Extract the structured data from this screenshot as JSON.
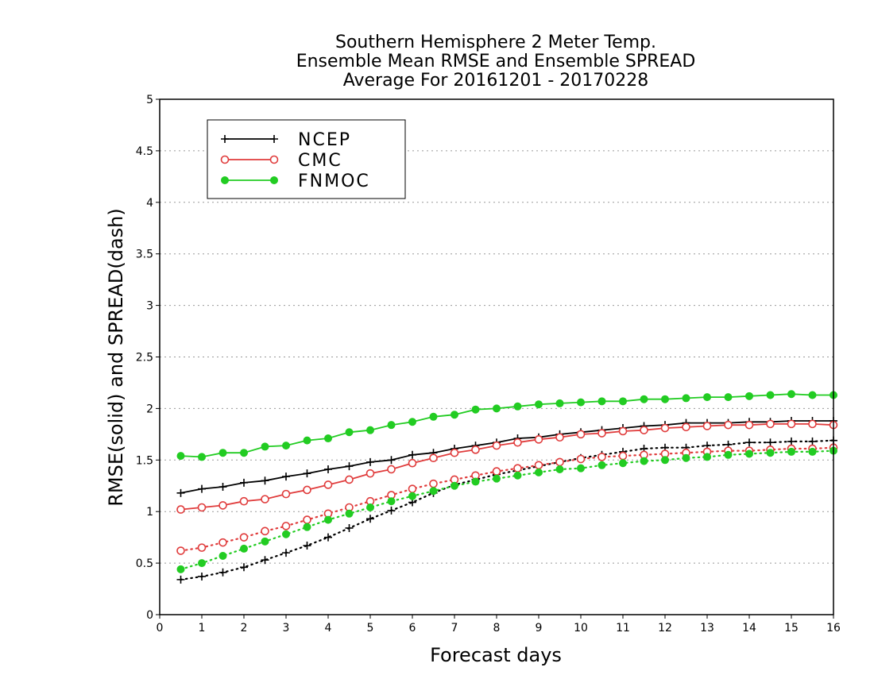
{
  "chart_data": {
    "type": "line",
    "title": [
      "Southern Hemisphere 2 Meter Temp.",
      "Ensemble Mean RMSE and Ensemble SPREAD",
      "Average For 20161201 - 20170228"
    ],
    "xlabel": "Forecast days",
    "ylabel": "RMSE(solid) and SPREAD(dash)",
    "xlim": [
      0,
      16
    ],
    "ylim": [
      0,
      5
    ],
    "xticks": [
      "0",
      "1",
      "2",
      "3",
      "4",
      "5",
      "6",
      "7",
      "8",
      "9",
      "10",
      "11",
      "12",
      "13",
      "14",
      "15",
      "16"
    ],
    "yticks": [
      "0",
      "0.5",
      "1",
      "1.5",
      "2",
      "2.5",
      "3",
      "3.5",
      "4",
      "4.5",
      "5"
    ],
    "grid": "horizontal dotted",
    "legend_placement": "top-left",
    "x": [
      0.5,
      1,
      1.5,
      2,
      2.5,
      3,
      3.5,
      4,
      4.5,
      5,
      5.5,
      6,
      6.5,
      7,
      7.5,
      8,
      8.5,
      9,
      9.5,
      10,
      10.5,
      11,
      11.5,
      12,
      12.5,
      13,
      13.5,
      14,
      14.5,
      15,
      15.5,
      16
    ],
    "series": [
      {
        "name": "NCEP",
        "metric": "RMSE",
        "style": "solid",
        "marker": "plus",
        "color": "#000000",
        "values": [
          1.18,
          1.22,
          1.24,
          1.28,
          1.3,
          1.34,
          1.37,
          1.41,
          1.44,
          1.48,
          1.5,
          1.55,
          1.57,
          1.61,
          1.64,
          1.67,
          1.71,
          1.72,
          1.75,
          1.77,
          1.79,
          1.81,
          1.83,
          1.84,
          1.86,
          1.86,
          1.86,
          1.87,
          1.87,
          1.88,
          1.88,
          1.88
        ]
      },
      {
        "name": "CMC",
        "metric": "RMSE",
        "style": "solid",
        "marker": "open-circle",
        "color": "#e03c3c",
        "values": [
          1.02,
          1.04,
          1.06,
          1.1,
          1.12,
          1.17,
          1.21,
          1.26,
          1.31,
          1.37,
          1.41,
          1.47,
          1.52,
          1.57,
          1.6,
          1.64,
          1.67,
          1.7,
          1.72,
          1.75,
          1.76,
          1.78,
          1.79,
          1.81,
          1.82,
          1.83,
          1.84,
          1.84,
          1.85,
          1.85,
          1.85,
          1.84
        ]
      },
      {
        "name": "FNMOC",
        "metric": "RMSE",
        "style": "solid",
        "marker": "filled-circle",
        "color": "#22cc22",
        "values": [
          1.54,
          1.53,
          1.57,
          1.57,
          1.63,
          1.64,
          1.69,
          1.71,
          1.77,
          1.79,
          1.84,
          1.87,
          1.92,
          1.94,
          1.99,
          2.0,
          2.02,
          2.04,
          2.05,
          2.06,
          2.07,
          2.07,
          2.09,
          2.09,
          2.1,
          2.11,
          2.11,
          2.12,
          2.13,
          2.14,
          2.13,
          2.13
        ]
      },
      {
        "name": "NCEP",
        "metric": "SPREAD",
        "style": "dash",
        "marker": "plus",
        "color": "#000000",
        "values": [
          0.34,
          0.37,
          0.41,
          0.46,
          0.53,
          0.6,
          0.67,
          0.75,
          0.84,
          0.93,
          1.01,
          1.09,
          1.18,
          1.26,
          1.31,
          1.36,
          1.4,
          1.44,
          1.48,
          1.52,
          1.55,
          1.58,
          1.61,
          1.62,
          1.62,
          1.64,
          1.65,
          1.67,
          1.67,
          1.68,
          1.68,
          1.69
        ]
      },
      {
        "name": "CMC",
        "metric": "SPREAD",
        "style": "dash",
        "marker": "open-circle",
        "color": "#e03c3c",
        "values": [
          0.62,
          0.65,
          0.7,
          0.75,
          0.81,
          0.86,
          0.92,
          0.98,
          1.04,
          1.1,
          1.16,
          1.22,
          1.27,
          1.31,
          1.35,
          1.39,
          1.42,
          1.45,
          1.48,
          1.51,
          1.53,
          1.54,
          1.55,
          1.56,
          1.57,
          1.58,
          1.59,
          1.59,
          1.6,
          1.61,
          1.61,
          1.62
        ]
      },
      {
        "name": "FNMOC",
        "metric": "SPREAD",
        "style": "dash",
        "marker": "filled-circle",
        "color": "#22cc22",
        "values": [
          0.44,
          0.5,
          0.57,
          0.64,
          0.71,
          0.78,
          0.85,
          0.92,
          0.98,
          1.04,
          1.1,
          1.15,
          1.2,
          1.25,
          1.29,
          1.32,
          1.35,
          1.38,
          1.41,
          1.42,
          1.45,
          1.47,
          1.49,
          1.5,
          1.52,
          1.53,
          1.55,
          1.56,
          1.57,
          1.58,
          1.58,
          1.59
        ]
      }
    ],
    "legend": [
      {
        "label": "NCEP",
        "marker": "plus",
        "color": "#000000"
      },
      {
        "label": "CMC",
        "marker": "open-circle",
        "color": "#e03c3c"
      },
      {
        "label": "FNMOC",
        "marker": "filled-circle",
        "color": "#22cc22"
      }
    ]
  }
}
